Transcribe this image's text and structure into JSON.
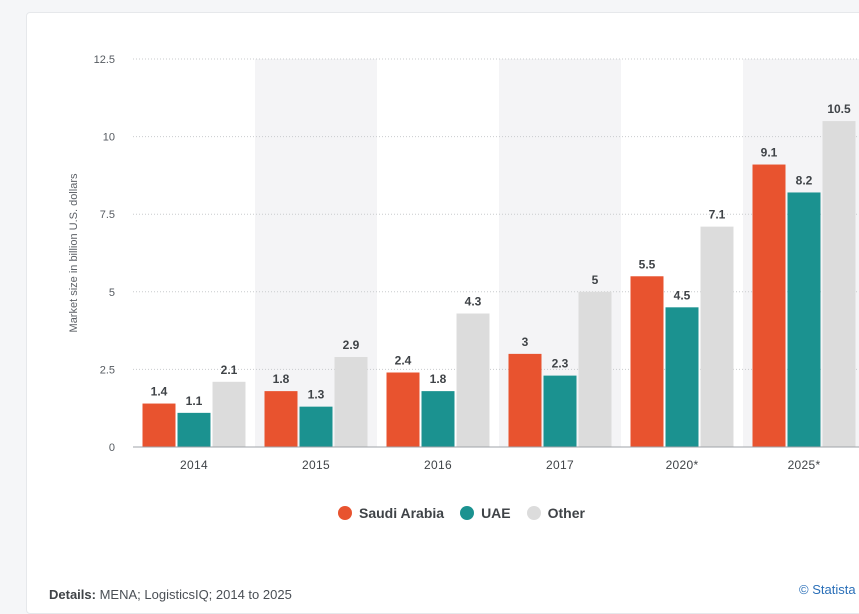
{
  "chart_data": {
    "type": "bar",
    "categories": [
      "2014",
      "2015",
      "2016",
      "2017",
      "2020*",
      "2025*"
    ],
    "series": [
      {
        "name": "Saudi Arabia",
        "color": "#e8532f",
        "values": [
          1.4,
          1.8,
          2.4,
          3,
          5.5,
          9.1
        ]
      },
      {
        "name": "UAE",
        "color": "#1b9290",
        "values": [
          1.1,
          1.3,
          1.8,
          2.3,
          4.5,
          8.2
        ]
      },
      {
        "name": "Other",
        "color": "#dcdcdc",
        "values": [
          2.1,
          2.9,
          4.3,
          5,
          7.1,
          10.5
        ]
      }
    ],
    "ylabel": "Market size in billion U.S. dollars",
    "ylim": [
      0,
      12.5
    ],
    "yticks": [
      "0",
      "2.5",
      "5",
      "7.5",
      "10",
      "12.5"
    ],
    "grid": true,
    "legend_placement": "bottom-center"
  },
  "footer": {
    "details_label": "Details:",
    "details_text": "MENA; LogisticsIQ; 2014 to 2025",
    "credit": "© Statista"
  }
}
